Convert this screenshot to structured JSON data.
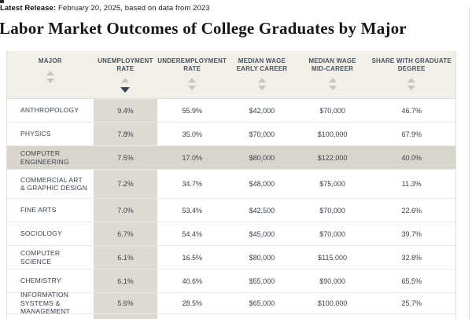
{
  "meta": {
    "release_label": "Latest Release:",
    "release_text": " February 20, 2025, based on data from 2023"
  },
  "title": "Labor Market Outcomes of College Graduates by Major",
  "colors": {
    "header_bg": "#f2efe9",
    "column_highlight": "#dedad2",
    "row_highlight": "#d9d5cc",
    "text": "#3a434e",
    "sort_active": "#3a434e",
    "sort_inactive": "#c9c5be"
  },
  "table": {
    "sorted_by": "unemployment",
    "sort_direction": "desc",
    "columns": [
      {
        "id": "major",
        "lines": [
          "MAJOR"
        ]
      },
      {
        "id": "unemployment",
        "lines": [
          "UNEMPLOYMENT",
          "RATE"
        ]
      },
      {
        "id": "underemployment",
        "lines": [
          "UNDEREMPLOYMENT",
          "RATE"
        ]
      },
      {
        "id": "early_career",
        "lines": [
          "MEDIAN WAGE",
          "EARLY CAREER"
        ]
      },
      {
        "id": "mid_career",
        "lines": [
          "MEDIAN WAGE",
          "MID-CAREER"
        ]
      },
      {
        "id": "grad_degree",
        "lines": [
          "SHARE WITH GRADUATE",
          "DEGREE"
        ]
      }
    ],
    "rows": [
      {
        "major": "ANTHROPOLOGY",
        "unemployment": "9.4%",
        "underemployment": "55.9%",
        "early_career": "$42,000",
        "mid_career": "$70,000",
        "grad_degree": "46.7%",
        "highlighted": false,
        "tall": false
      },
      {
        "major": "PHYSICS",
        "unemployment": "7.8%",
        "underemployment": "35.0%",
        "early_career": "$70,000",
        "mid_career": "$100,000",
        "grad_degree": "67.9%",
        "highlighted": false,
        "tall": false
      },
      {
        "major": "COMPUTER ENGINEERING",
        "unemployment": "7.5%",
        "underemployment": "17.0%",
        "early_career": "$80,000",
        "mid_career": "$122,000",
        "grad_degree": "40.0%",
        "highlighted": true,
        "tall": false
      },
      {
        "major": "COMMERCIAL ART & GRAPHIC DESIGN",
        "unemployment": "7.2%",
        "underemployment": "34.7%",
        "early_career": "$48,000",
        "mid_career": "$75,000",
        "grad_degree": "11.3%",
        "highlighted": false,
        "tall": true
      },
      {
        "major": "FINE ARTS",
        "unemployment": "7.0%",
        "underemployment": "53.4%",
        "early_career": "$42,500",
        "mid_career": "$70,000",
        "grad_degree": "22.6%",
        "highlighted": false,
        "tall": false
      },
      {
        "major": "SOCIOLOGY",
        "unemployment": "6.7%",
        "underemployment": "54.4%",
        "early_career": "$45,000",
        "mid_career": "$70,000",
        "grad_degree": "39.7%",
        "highlighted": false,
        "tall": false
      },
      {
        "major": "COMPUTER SCIENCE",
        "unemployment": "6.1%",
        "underemployment": "16.5%",
        "early_career": "$80,000",
        "mid_career": "$115,000",
        "grad_degree": "32.8%",
        "highlighted": false,
        "tall": false
      },
      {
        "major": "CHEMISTRY",
        "unemployment": "6.1%",
        "underemployment": "40.6%",
        "early_career": "$55,000",
        "mid_career": "$90,000",
        "grad_degree": "65.5%",
        "highlighted": false,
        "tall": false
      },
      {
        "major": "INFORMATION SYSTEMS & MANAGEMENT",
        "unemployment": "5.6%",
        "underemployment": "28.5%",
        "early_career": "$65,000",
        "mid_career": "$100,000",
        "grad_degree": "25.7%",
        "highlighted": false,
        "tall": false
      }
    ]
  }
}
